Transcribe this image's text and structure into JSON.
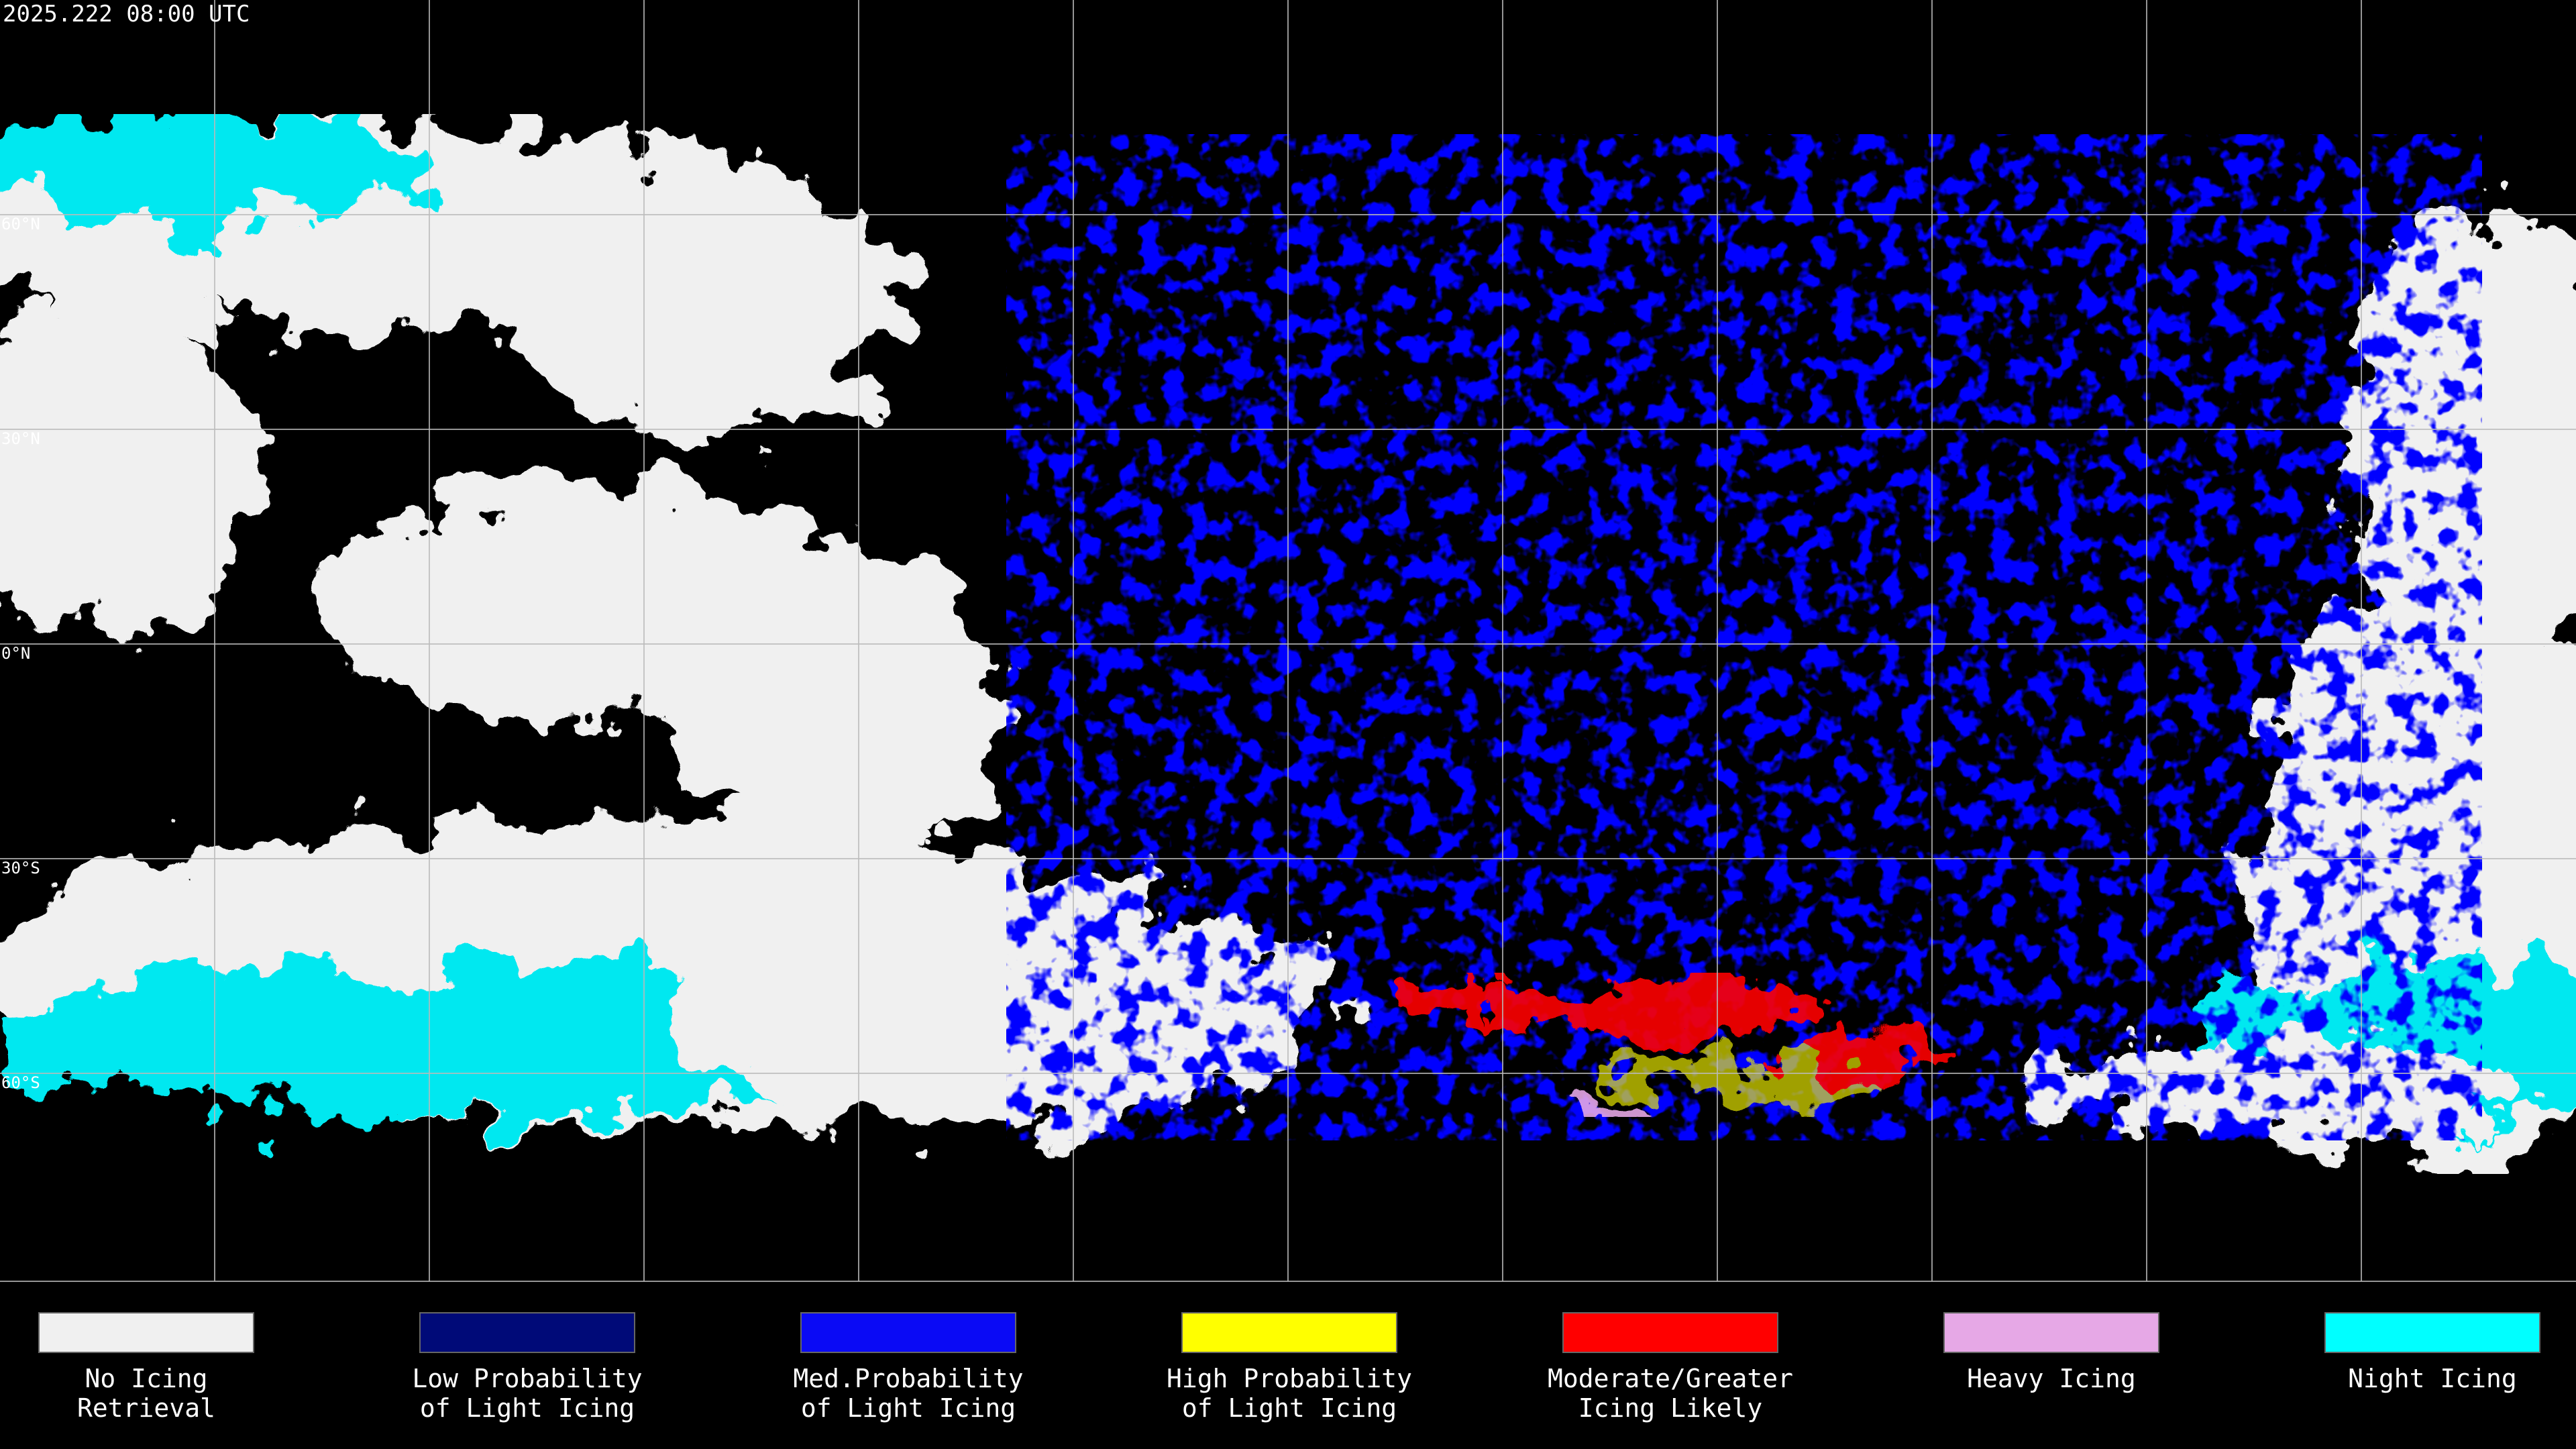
{
  "header": {
    "timestamp": "2025.222 08:00 UTC"
  },
  "map": {
    "latitude_labels": [
      "60°N",
      "30°N",
      "0°N",
      "30°S",
      "60°S"
    ]
  },
  "legend": [
    {
      "lines": [
        "No Icing",
        "Retrieval"
      ],
      "color": "#f0f0f0"
    },
    {
      "lines": [
        "Low Probability",
        "of Light Icing"
      ],
      "color": "#000a78"
    },
    {
      "lines": [
        "Med.Probability",
        "of Light Icing"
      ],
      "color": "#0a0af5"
    },
    {
      "lines": [
        "High Probability",
        "of Light Icing"
      ],
      "color": "#ffff00"
    },
    {
      "lines": [
        "Moderate/Greater",
        "Icing Likely"
      ],
      "color": "#ff0000"
    },
    {
      "lines": [
        "Heavy Icing"
      ],
      "color": "#e6a8e6"
    },
    {
      "lines": [
        "Night Icing"
      ],
      "color": "#00ffff"
    }
  ]
}
